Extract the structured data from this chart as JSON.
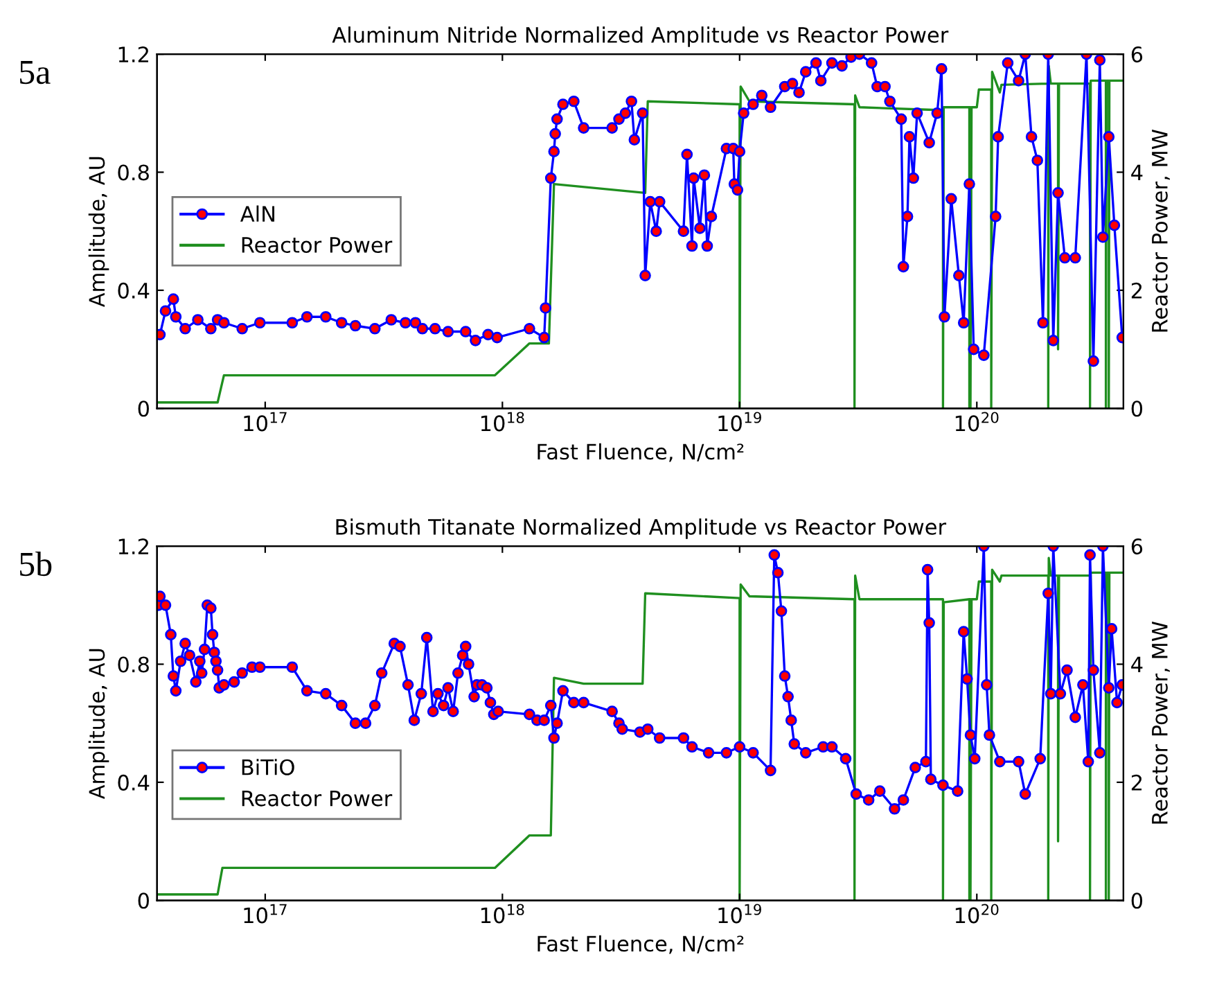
{
  "chart_data": [
    {
      "type": "line",
      "title": "Aluminum Nitride Normalized Amplitude vs Reactor Power",
      "xlabel": "Fast Fluence, N/cm²",
      "ylabel": "Amplitude, AU",
      "y2label": "Reactor Power, MW",
      "annotations": [
        "5a"
      ],
      "log": "x",
      "grid": false,
      "legend": "left",
      "xlim": [
        3.5e+16,
        4.15e+20
      ],
      "xticks": [
        {
          "value": 1e+17,
          "label": "10$^{17}$"
        },
        {
          "value": 1e+18,
          "label": "10$^{18}$"
        },
        {
          "value": 1e+19,
          "label": "10$^{19}$"
        },
        {
          "value": 1e+20,
          "label": "10$^{20}$"
        }
      ],
      "ylim": [
        0,
        1.2
      ],
      "yticks": [
        0,
        0.4,
        0.8,
        1.2
      ],
      "y2lim": [
        0,
        6
      ],
      "y2ticks": [
        0,
        2,
        4,
        6
      ],
      "series": [
        {
          "name": "AlN",
          "color": "#0000ff",
          "marker": "circle",
          "line_style": "solid",
          "x": [
            3.6e+16,
            3.8e+16,
            4.1e+16,
            4.2e+16,
            4.6e+16,
            5.2e+16,
            5.9e+16,
            6.3e+16,
            6.7e+16,
            8e+16,
            9.5e+16,
            1.3e+17,
            1.5e+17,
            1.8e+17,
            2.1e+17,
            2.4e+17,
            2.9e+17,
            3.4e+17,
            3.9e+17,
            4.3e+17,
            4.6e+17,
            5.2e+17,
            5.9e+17,
            7e+17,
            7.7e+17,
            8.7e+17,
            9.5e+17,
            1.3e+18,
            1.5e+18,
            1.52e+18,
            1.6e+18,
            1.65e+18,
            1.67e+18,
            1.7e+18,
            1.8e+18,
            2e+18,
            2.2e+18,
            2.9e+18,
            3.1e+18,
            3.3e+18,
            3.5e+18,
            3.6e+18,
            3.9e+18,
            4e+18,
            4.2e+18,
            4.45e+18,
            4.6e+18,
            5.8e+18,
            6e+18,
            6.3e+18,
            6.4e+18,
            6.8e+18,
            7.1e+18,
            7.3e+18,
            7.6e+18,
            8.8e+18,
            9.4e+18,
            9.5e+18,
            9.8e+18,
            1e+19,
            1.04e+19,
            1.14e+19,
            1.24e+19,
            1.35e+19,
            1.55e+19,
            1.67e+19,
            1.78e+19,
            1.9e+19,
            2.1e+19,
            2.2e+19,
            2.45e+19,
            2.7e+19,
            2.95e+19,
            3.2e+19,
            3.6e+19,
            3.8e+19,
            4.1e+19,
            4.3e+19,
            4.8e+19,
            4.9e+19,
            5.1e+19,
            5.2e+19,
            5.4e+19,
            5.6e+19,
            6.3e+19,
            6.8e+19,
            7.1e+19,
            7.3e+19,
            7.8e+19,
            8.4e+19,
            8.8e+19,
            9.3e+19,
            9.7e+19,
            1.07e+20,
            1.2e+20,
            1.23e+20,
            1.35e+20,
            1.5e+20,
            1.6e+20,
            1.7e+20,
            1.8e+20,
            1.9e+20,
            2e+20,
            2.1e+20,
            2.2e+20,
            2.35e+20,
            2.6e+20,
            2.9e+20,
            3.1e+20,
            3.3e+20,
            3.4e+20,
            3.6e+20,
            3.8e+20,
            4.1e+20
          ],
          "values": [
            0.25,
            0.33,
            0.37,
            0.31,
            0.27,
            0.3,
            0.27,
            0.3,
            0.29,
            0.27,
            0.29,
            0.29,
            0.31,
            0.31,
            0.29,
            0.28,
            0.27,
            0.3,
            0.29,
            0.29,
            0.27,
            0.27,
            0.26,
            0.26,
            0.23,
            0.25,
            0.24,
            0.27,
            0.24,
            0.34,
            0.78,
            0.87,
            0.93,
            0.98,
            1.03,
            1.04,
            0.95,
            0.95,
            0.98,
            1.0,
            1.04,
            0.91,
            1.0,
            0.45,
            0.7,
            0.6,
            0.7,
            0.6,
            0.86,
            0.55,
            0.78,
            0.61,
            0.79,
            0.55,
            0.65,
            0.88,
            0.88,
            0.76,
            0.74,
            0.87,
            1.0,
            1.03,
            1.06,
            1.02,
            1.09,
            1.1,
            1.07,
            1.14,
            1.17,
            1.11,
            1.17,
            1.16,
            1.19,
            1.2,
            1.17,
            1.09,
            1.09,
            1.04,
            0.98,
            0.48,
            0.65,
            0.92,
            0.78,
            1.0,
            0.9,
            1.0,
            1.15,
            0.31,
            0.71,
            0.45,
            0.29,
            0.76,
            0.2,
            0.18,
            0.65,
            0.92,
            1.17,
            1.11,
            1.2,
            0.92,
            0.84,
            0.29,
            1.2,
            0.23,
            0.73,
            0.51,
            0.51,
            1.2,
            0.16,
            1.18,
            0.58,
            0.92,
            0.62,
            0.24
          ]
        },
        {
          "name": "Reactor Power",
          "axis": "y2",
          "color": "#1f8f1f",
          "marker": "none",
          "line_style": "solid",
          "x": [
            3.5e+16,
            6.3e+16,
            6.7e+16,
            9.3e+17,
            1.3e+18,
            1.57e+18,
            1.65e+18,
            4e+18,
            4.1e+18,
            1e+19,
            1e+19,
            1.01e+19,
            1.1e+19,
            3.05e+19,
            3.05e+19,
            3.07e+19,
            3.2e+19,
            7.2e+19,
            7.2e+19,
            7.25e+19,
            9.3e+19,
            9.3e+19,
            9.35e+19,
            9.4e+19,
            9.4e+19,
            9.5e+19,
            1e+20,
            1.02e+20,
            1.15e+20,
            1.15e+20,
            1.16e+20,
            1.25e+20,
            1.27e+20,
            2e+20,
            2e+20,
            2.01e+20,
            2.05e+20,
            2.2e+20,
            2.2e+20,
            2.22e+20,
            3e+20,
            3e+20,
            3.02e+20,
            3.5e+20,
            3.5e+20,
            3.52e+20,
            3.6e+20,
            3.6e+20,
            3.62e+20,
            4.15e+20
          ],
          "values": [
            0.1,
            0.1,
            0.56,
            0.56,
            1.1,
            1.1,
            3.8,
            3.65,
            5.2,
            5.15,
            0,
            5.45,
            5.2,
            5.15,
            0,
            5.3,
            5.1,
            5.05,
            0,
            5.1,
            5.1,
            0,
            5.1,
            5.1,
            0,
            5.1,
            5.1,
            5.4,
            5.4,
            0,
            5.7,
            5.35,
            5.48,
            5.5,
            0,
            5.8,
            5.5,
            5.5,
            1.0,
            5.5,
            5.5,
            0,
            5.55,
            5.55,
            0,
            5.55,
            5.55,
            0,
            5.55,
            5.55
          ]
        }
      ]
    },
    {
      "type": "line",
      "title": "Bismuth Titanate Normalized Amplitude vs Reactor Power",
      "xlabel": "Fast Fluence, N/cm²",
      "ylabel": "Amplitude, AU",
      "y2label": "Reactor Power, MW",
      "annotations": [
        "5b"
      ],
      "log": "x",
      "grid": false,
      "legend": "bottom left",
      "xlim": [
        3.5e+16,
        4.15e+20
      ],
      "xticks": [
        {
          "value": 1e+17,
          "label": "10$^{17}$"
        },
        {
          "value": 1e+18,
          "label": "10$^{18}$"
        },
        {
          "value": 1e+19,
          "label": "10$^{19}$"
        },
        {
          "value": 1e+20,
          "label": "10$^{20}$"
        }
      ],
      "ylim": [
        0,
        1.2
      ],
      "yticks": [
        0,
        0.4,
        0.8,
        1.2
      ],
      "y2lim": [
        0,
        6
      ],
      "y2ticks": [
        0,
        2,
        4,
        6
      ],
      "series": [
        {
          "name": "BiTiO",
          "color": "#0000ff",
          "marker": "circle",
          "line_style": "solid",
          "x": [
            3.55e+16,
            3.6e+16,
            3.8e+16,
            4e+16,
            4.1e+16,
            4.2e+16,
            4.4e+16,
            4.6e+16,
            4.8e+16,
            5.1e+16,
            5.3e+16,
            5.4e+16,
            5.55e+16,
            5.7e+16,
            5.9e+16,
            6e+16,
            6.1e+16,
            6.2e+16,
            6.3e+16,
            6.4e+16,
            6.7e+16,
            7.4e+16,
            8e+16,
            8.8e+16,
            9.5e+16,
            1.3e+17,
            1.5e+17,
            1.8e+17,
            2.1e+17,
            2.4e+17,
            2.65e+17,
            2.9e+17,
            3.1e+17,
            3.5e+17,
            3.7e+17,
            4e+17,
            4.25e+17,
            4.55e+17,
            4.8e+17,
            5.1e+17,
            5.35e+17,
            5.65e+17,
            5.9e+17,
            6.2e+17,
            6.5e+17,
            6.8e+17,
            7e+17,
            7.2e+17,
            7.6e+17,
            7.8e+17,
            8.2e+17,
            8.6e+17,
            8.9e+17,
            9.2e+17,
            9.6e+17,
            1.3e+18,
            1.4e+18,
            1.5e+18,
            1.6e+18,
            1.65e+18,
            1.7e+18,
            1.8e+18,
            2e+18,
            2.2e+18,
            2.9e+18,
            3.1e+18,
            3.2e+18,
            3.8e+18,
            4.1e+18,
            4.6e+18,
            5.8e+18,
            6.3e+18,
            7.4e+18,
            8.8e+18,
            1e+19,
            1.14e+19,
            1.35e+19,
            1.4e+19,
            1.45e+19,
            1.5e+19,
            1.55e+19,
            1.6e+19,
            1.65e+19,
            1.7e+19,
            1.9e+19,
            2.25e+19,
            2.45e+19,
            2.8e+19,
            3.1e+19,
            3.5e+19,
            3.9e+19,
            4.5e+19,
            4.9e+19,
            5.5e+19,
            6.1e+19,
            6.2e+19,
            6.3e+19,
            6.4e+19,
            7.2e+19,
            8.3e+19,
            8.8e+19,
            9.1e+19,
            9.4e+19,
            9.8e+19,
            1.07e+20,
            1.1e+20,
            1.13e+20,
            1.25e+20,
            1.5e+20,
            1.6e+20,
            1.85e+20,
            2e+20,
            2.05e+20,
            2.1e+20,
            2.25e+20,
            2.4e+20,
            2.6e+20,
            2.8e+20,
            2.95e+20,
            3e+20,
            3.1e+20,
            3.3e+20,
            3.4e+20,
            3.6e+20,
            3.7e+20,
            3.9e+20,
            4.1e+20
          ],
          "values": [
            1.0,
            1.03,
            1.0,
            0.9,
            0.76,
            0.71,
            0.81,
            0.87,
            0.83,
            0.74,
            0.81,
            0.77,
            0.85,
            1.0,
            0.99,
            0.9,
            0.84,
            0.81,
            0.78,
            0.72,
            0.73,
            0.74,
            0.77,
            0.79,
            0.79,
            0.79,
            0.71,
            0.7,
            0.66,
            0.6,
            0.6,
            0.66,
            0.77,
            0.87,
            0.86,
            0.73,
            0.61,
            0.7,
            0.89,
            0.64,
            0.7,
            0.66,
            0.72,
            0.64,
            0.77,
            0.83,
            0.86,
            0.8,
            0.69,
            0.73,
            0.73,
            0.72,
            0.67,
            0.63,
            0.64,
            0.63,
            0.61,
            0.61,
            0.66,
            0.55,
            0.6,
            0.71,
            0.67,
            0.67,
            0.64,
            0.6,
            0.58,
            0.57,
            0.58,
            0.55,
            0.55,
            0.52,
            0.5,
            0.5,
            0.52,
            0.5,
            0.44,
            1.17,
            1.11,
            0.98,
            0.76,
            0.69,
            0.61,
            0.53,
            0.5,
            0.52,
            0.52,
            0.48,
            0.36,
            0.34,
            0.37,
            0.31,
            0.34,
            0.45,
            0.47,
            1.12,
            0.94,
            0.41,
            0.39,
            0.37,
            0.91,
            0.75,
            0.56,
            0.48,
            1.2,
            0.73,
            0.56,
            0.47,
            0.47,
            0.36,
            0.48,
            1.04,
            0.7,
            1.2,
            0.7,
            0.78,
            0.62,
            0.73,
            0.47,
            1.17,
            0.78,
            0.5,
            1.2,
            0.72,
            0.92,
            0.67,
            0.73
          ]
        },
        {
          "name": "Reactor Power",
          "axis": "y2",
          "color": "#1f8f1f",
          "marker": "none",
          "line_style": "solid",
          "x": [
            3.5e+16,
            6.3e+16,
            6.6e+16,
            9.3e+17,
            1.3e+18,
            1.6e+18,
            1.65e+18,
            2.2e+18,
            3.9e+18,
            4e+18,
            1e+19,
            1e+19,
            1.01e+19,
            1.1e+19,
            3.05e+19,
            3.05e+19,
            3.07e+19,
            3.2e+19,
            7.2e+19,
            7.2e+19,
            7.25e+19,
            9.3e+19,
            9.3e+19,
            9.35e+19,
            9.4e+19,
            9.4e+19,
            9.5e+19,
            1e+20,
            1.02e+20,
            1.15e+20,
            1.15e+20,
            1.16e+20,
            1.25e+20,
            1.27e+20,
            2e+20,
            2e+20,
            2.01e+20,
            2.05e+20,
            2.2e+20,
            2.2e+20,
            2.22e+20,
            3e+20,
            3e+20,
            3.02e+20,
            3.5e+20,
            3.5e+20,
            3.52e+20,
            3.6e+20,
            3.6e+20,
            3.62e+20,
            4.15e+20
          ],
          "values": [
            0.1,
            0.1,
            0.55,
            0.55,
            1.1,
            1.1,
            3.77,
            3.67,
            3.67,
            5.2,
            5.12,
            0,
            5.35,
            5.15,
            5.1,
            0,
            5.5,
            5.1,
            5.1,
            0,
            5.05,
            5.1,
            0,
            5.1,
            5.1,
            0,
            5.1,
            5.1,
            5.4,
            5.4,
            0,
            5.6,
            5.4,
            5.5,
            5.5,
            0,
            5.8,
            5.5,
            5.5,
            1.0,
            5.5,
            5.5,
            0,
            5.55,
            5.55,
            0,
            5.55,
            5.55,
            0,
            5.55,
            5.55
          ]
        }
      ]
    }
  ]
}
